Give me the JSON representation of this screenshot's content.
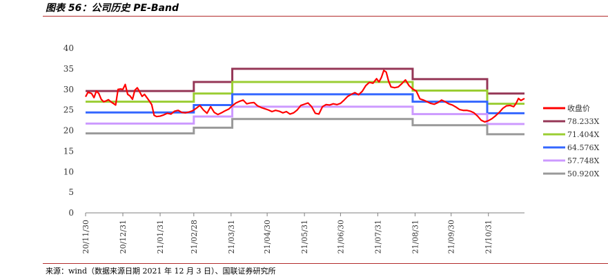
{
  "title": "图表 56：公司历史 PE-Band",
  "source": "来源：wind（数据来源日期 2021 年 12 月 3 日）、国联证券研究所",
  "chart_data": {
    "type": "line",
    "title": "",
    "xlabel": "",
    "ylabel": "",
    "ylim": [
      0,
      40
    ],
    "yticks": [
      0,
      5,
      10,
      15,
      20,
      25,
      30,
      35,
      40
    ],
    "grid": false,
    "legend_position": "right",
    "x_tick_labels": [
      "20/11/30",
      "20/12/31",
      "21/01/31",
      "21/02/28",
      "21/03/31",
      "21/04/30",
      "21/05/31",
      "21/06/30",
      "21/07/31",
      "21/08/31",
      "21/09/30",
      "21/10/31"
    ],
    "x_tick_dates": [
      "2020-11-30",
      "2020-12-31",
      "2021-01-31",
      "2021-02-28",
      "2021-03-31",
      "2021-04-30",
      "2021-05-31",
      "2021-06-30",
      "2021-07-31",
      "2021-08-31",
      "2021-09-30",
      "2021-10-31"
    ],
    "x_range": [
      "2020-11-30",
      "2021-11-30"
    ],
    "series": [
      {
        "name": "收盘价",
        "color": "#ff0000",
        "style": "price",
        "points": [
          [
            "2020-11-30",
            28.2
          ],
          [
            "2020-12-02",
            29.3
          ],
          [
            "2020-12-05",
            29.0
          ],
          [
            "2020-12-07",
            28.0
          ],
          [
            "2020-12-09",
            29.6
          ],
          [
            "2020-12-11",
            29.0
          ],
          [
            "2020-12-13",
            27.6
          ],
          [
            "2020-12-15",
            27.0
          ],
          [
            "2020-12-17",
            27.2
          ],
          [
            "2020-12-19",
            27.5
          ],
          [
            "2020-12-21",
            27.0
          ],
          [
            "2020-12-23",
            26.6
          ],
          [
            "2020-12-25",
            26.2
          ],
          [
            "2020-12-27",
            30.0
          ],
          [
            "2020-12-29",
            30.1
          ],
          [
            "2020-12-31",
            30.0
          ],
          [
            "2021-01-02",
            31.2
          ],
          [
            "2021-01-04",
            28.8
          ],
          [
            "2021-01-06",
            28.4
          ],
          [
            "2021-01-08",
            27.6
          ],
          [
            "2021-01-10",
            29.8
          ],
          [
            "2021-01-12",
            30.4
          ],
          [
            "2021-01-14",
            29.4
          ],
          [
            "2021-01-16",
            28.3
          ],
          [
            "2021-01-18",
            28.8
          ],
          [
            "2021-01-20",
            28.0
          ],
          [
            "2021-01-22",
            27.2
          ],
          [
            "2021-01-24",
            26.3
          ],
          [
            "2021-01-26",
            23.7
          ],
          [
            "2021-01-28",
            23.4
          ],
          [
            "2021-01-31",
            23.5
          ],
          [
            "2021-02-03",
            23.8
          ],
          [
            "2021-02-06",
            24.2
          ],
          [
            "2021-02-09",
            24.0
          ],
          [
            "2021-02-12",
            24.7
          ],
          [
            "2021-02-15",
            24.9
          ],
          [
            "2021-02-18",
            24.4
          ],
          [
            "2021-02-21",
            24.3
          ],
          [
            "2021-02-24",
            24.5
          ],
          [
            "2021-02-27",
            24.8
          ],
          [
            "2021-03-02",
            25.4
          ],
          [
            "2021-03-05",
            26.1
          ],
          [
            "2021-03-08",
            25.0
          ],
          [
            "2021-03-11",
            24.2
          ],
          [
            "2021-03-14",
            25.8
          ],
          [
            "2021-03-17",
            24.4
          ],
          [
            "2021-03-20",
            23.9
          ],
          [
            "2021-03-23",
            24.3
          ],
          [
            "2021-03-26",
            24.8
          ],
          [
            "2021-03-29",
            25.2
          ],
          [
            "2021-04-01",
            26.0
          ],
          [
            "2021-04-04",
            26.7
          ],
          [
            "2021-04-07",
            27.1
          ],
          [
            "2021-04-10",
            27.4
          ],
          [
            "2021-04-13",
            26.5
          ],
          [
            "2021-04-16",
            26.7
          ],
          [
            "2021-04-19",
            26.8
          ],
          [
            "2021-04-22",
            26.0
          ],
          [
            "2021-04-25",
            25.6
          ],
          [
            "2021-04-28",
            25.3
          ],
          [
            "2021-05-01",
            25.0
          ],
          [
            "2021-05-04",
            24.6
          ],
          [
            "2021-05-07",
            24.9
          ],
          [
            "2021-05-10",
            24.7
          ],
          [
            "2021-05-13",
            24.3
          ],
          [
            "2021-05-16",
            24.6
          ],
          [
            "2021-05-19",
            24.0
          ],
          [
            "2021-05-22",
            24.3
          ],
          [
            "2021-05-25",
            25.0
          ],
          [
            "2021-05-28",
            26.1
          ],
          [
            "2021-05-31",
            26.4
          ],
          [
            "2021-06-03",
            26.7
          ],
          [
            "2021-06-06",
            25.8
          ],
          [
            "2021-06-09",
            24.2
          ],
          [
            "2021-06-12",
            24.0
          ],
          [
            "2021-06-15",
            25.8
          ],
          [
            "2021-06-18",
            26.3
          ],
          [
            "2021-06-21",
            26.2
          ],
          [
            "2021-06-24",
            26.5
          ],
          [
            "2021-06-27",
            26.3
          ],
          [
            "2021-06-30",
            26.6
          ],
          [
            "2021-07-03",
            27.4
          ],
          [
            "2021-07-06",
            28.3
          ],
          [
            "2021-07-09",
            28.8
          ],
          [
            "2021-07-12",
            29.2
          ],
          [
            "2021-07-15",
            28.7
          ],
          [
            "2021-07-18",
            29.5
          ],
          [
            "2021-07-21",
            30.9
          ],
          [
            "2021-07-24",
            31.7
          ],
          [
            "2021-07-27",
            31.5
          ],
          [
            "2021-07-30",
            32.6
          ],
          [
            "2021-08-01",
            31.8
          ],
          [
            "2021-08-03",
            32.9
          ],
          [
            "2021-08-05",
            34.6
          ],
          [
            "2021-08-07",
            34.2
          ],
          [
            "2021-08-09",
            32.0
          ],
          [
            "2021-08-11",
            30.6
          ],
          [
            "2021-08-14",
            30.4
          ],
          [
            "2021-08-17",
            30.6
          ],
          [
            "2021-08-20",
            31.4
          ],
          [
            "2021-08-23",
            32.3
          ],
          [
            "2021-08-26",
            30.9
          ],
          [
            "2021-08-29",
            30.1
          ],
          [
            "2021-09-01",
            29.6
          ],
          [
            "2021-09-04",
            27.7
          ],
          [
            "2021-09-07",
            27.4
          ],
          [
            "2021-09-10",
            27.0
          ],
          [
            "2021-09-13",
            26.6
          ],
          [
            "2021-09-16",
            26.4
          ],
          [
            "2021-09-19",
            26.8
          ],
          [
            "2021-09-22",
            27.4
          ],
          [
            "2021-09-25",
            27.0
          ],
          [
            "2021-09-28",
            26.5
          ],
          [
            "2021-10-01",
            26.2
          ],
          [
            "2021-10-04",
            25.7
          ],
          [
            "2021-10-07",
            25.1
          ],
          [
            "2021-10-10",
            24.9
          ],
          [
            "2021-10-13",
            24.9
          ],
          [
            "2021-10-16",
            24.7
          ],
          [
            "2021-10-19",
            24.3
          ],
          [
            "2021-10-22",
            23.5
          ],
          [
            "2021-10-25",
            22.5
          ],
          [
            "2021-10-28",
            22.1
          ],
          [
            "2021-10-31",
            22.4
          ],
          [
            "2021-11-03",
            22.9
          ],
          [
            "2021-11-06",
            23.6
          ],
          [
            "2021-11-09",
            24.4
          ],
          [
            "2021-11-12",
            25.4
          ],
          [
            "2021-11-15",
            26.0
          ],
          [
            "2021-11-18",
            26.1
          ],
          [
            "2021-11-21",
            25.8
          ],
          [
            "2021-11-23",
            26.6
          ],
          [
            "2021-11-25",
            27.8
          ],
          [
            "2021-11-27",
            27.3
          ],
          [
            "2021-11-30",
            27.8
          ]
        ]
      },
      {
        "name": "78.233X",
        "color": "#953656",
        "steps": [
          [
            "2020-11-30",
            29.6
          ],
          [
            "2021-02-28",
            31.8
          ],
          [
            "2021-04-01",
            35.0
          ],
          [
            "2021-08-29",
            32.5
          ],
          [
            "2021-10-30",
            29.0
          ]
        ]
      },
      {
        "name": "71.404X",
        "color": "#9acd32",
        "steps": [
          [
            "2020-11-30",
            27.0
          ],
          [
            "2021-02-28",
            29.0
          ],
          [
            "2021-04-01",
            31.8
          ],
          [
            "2021-08-29",
            29.7
          ],
          [
            "2021-10-30",
            26.5
          ]
        ]
      },
      {
        "name": "64.576X",
        "color": "#3366ff",
        "steps": [
          [
            "2020-11-30",
            24.4
          ],
          [
            "2021-02-28",
            26.2
          ],
          [
            "2021-04-01",
            28.8
          ],
          [
            "2021-08-29",
            27.0
          ],
          [
            "2021-10-30",
            24.2
          ]
        ]
      },
      {
        "name": "57.748X",
        "color": "#cc99ff",
        "steps": [
          [
            "2020-11-30",
            21.7
          ],
          [
            "2021-02-28",
            23.4
          ],
          [
            "2021-04-01",
            25.8
          ],
          [
            "2021-08-29",
            24.0
          ],
          [
            "2021-10-30",
            21.6
          ]
        ]
      },
      {
        "name": "50.920X",
        "color": "#999999",
        "steps": [
          [
            "2020-11-30",
            19.3
          ],
          [
            "2021-02-28",
            20.7
          ],
          [
            "2021-04-01",
            22.8
          ],
          [
            "2021-08-29",
            21.3
          ],
          [
            "2021-10-30",
            19.1
          ]
        ]
      }
    ]
  }
}
